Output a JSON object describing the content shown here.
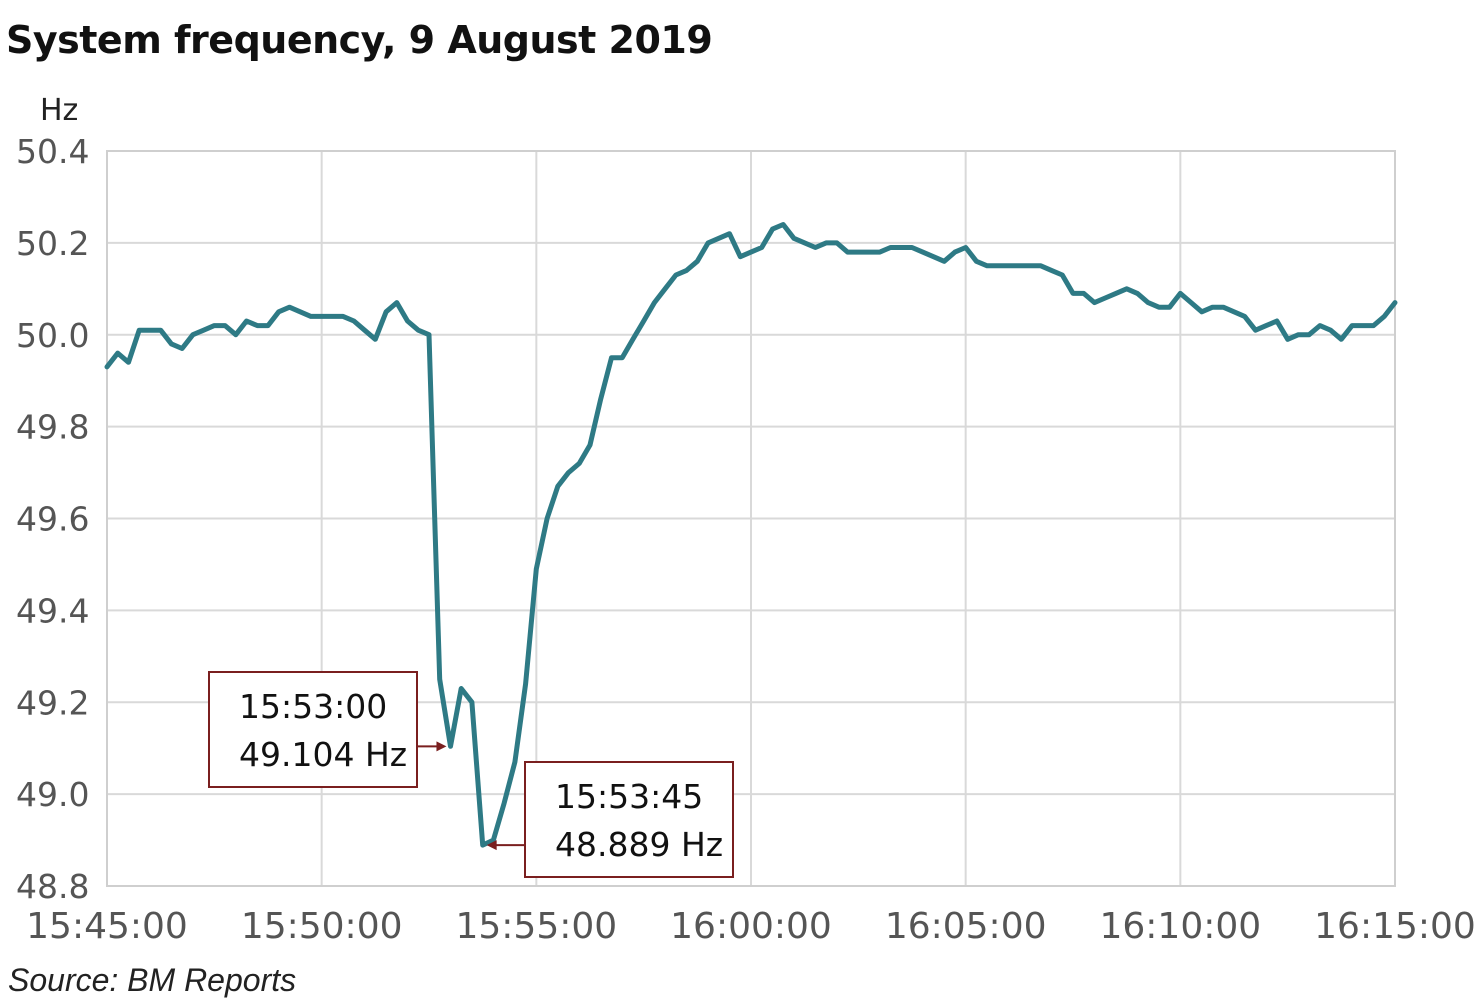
{
  "chart_data": {
    "type": "line",
    "title": "System frequency, 9 August 2019",
    "ylabel": "Hz",
    "xlabel": "",
    "ylim": [
      48.8,
      50.4
    ],
    "xlim": [
      "15:45:00",
      "16:15:00"
    ],
    "yticks": [
      "48.8",
      "49.0",
      "49.2",
      "49.4",
      "49.6",
      "49.8",
      "50.0",
      "50.2",
      "50.4"
    ],
    "xticks": [
      "15:45:00",
      "15:50:00",
      "15:55:00",
      "16:00:00",
      "16:05:00",
      "16:10:00",
      "16:15:00"
    ],
    "grid": true,
    "line_color": "#2e7a85",
    "annotation_color": "#7a1f1f",
    "series": [
      {
        "x": [
          "15:45:00",
          "15:45:15",
          "15:45:30",
          "15:45:45",
          "15:46:00",
          "15:46:15",
          "15:46:30",
          "15:46:45",
          "15:47:00",
          "15:47:15",
          "15:47:30",
          "15:47:45",
          "15:48:00",
          "15:48:15",
          "15:48:30",
          "15:48:45",
          "15:49:00",
          "15:49:15",
          "15:49:30",
          "15:49:45",
          "15:50:00",
          "15:50:15",
          "15:50:30",
          "15:50:45",
          "15:51:00",
          "15:51:15",
          "15:51:30",
          "15:51:45",
          "15:52:00",
          "15:52:15",
          "15:52:30",
          "15:52:45",
          "15:53:00",
          "15:53:15",
          "15:53:30",
          "15:53:45",
          "15:54:00",
          "15:54:15",
          "15:54:30",
          "15:54:45",
          "15:55:00",
          "15:55:15",
          "15:55:30",
          "15:55:45",
          "15:56:00",
          "15:56:15",
          "15:56:30",
          "15:56:45",
          "15:57:00",
          "15:57:15",
          "15:57:30",
          "15:57:45",
          "15:58:00",
          "15:58:15",
          "15:58:30",
          "15:58:45",
          "15:59:00",
          "15:59:15",
          "15:59:30",
          "15:59:45",
          "16:00:00",
          "16:00:15",
          "16:00:30",
          "16:00:45",
          "16:01:00",
          "16:01:15",
          "16:01:30",
          "16:01:45",
          "16:02:00",
          "16:02:15",
          "16:02:30",
          "16:02:45",
          "16:03:00",
          "16:03:15",
          "16:03:30",
          "16:03:45",
          "16:04:00",
          "16:04:15",
          "16:04:30",
          "16:04:45",
          "16:05:00",
          "16:05:15",
          "16:05:30",
          "16:05:45",
          "16:06:00",
          "16:06:15",
          "16:06:30",
          "16:06:45",
          "16:07:00",
          "16:07:15",
          "16:07:30",
          "16:07:45",
          "16:08:00",
          "16:08:15",
          "16:08:30",
          "16:08:45",
          "16:09:00",
          "16:09:15",
          "16:09:30",
          "16:09:45",
          "16:10:00",
          "16:10:15",
          "16:10:30",
          "16:10:45",
          "16:11:00",
          "16:11:15",
          "16:11:30",
          "16:11:45",
          "16:12:00",
          "16:12:15",
          "16:12:30",
          "16:12:45",
          "16:13:00",
          "16:13:15",
          "16:13:30",
          "16:13:45",
          "16:14:00",
          "16:14:15",
          "16:14:30",
          "16:14:45",
          "16:15:00"
        ],
        "values": [
          49.93,
          49.96,
          49.94,
          50.01,
          50.01,
          50.01,
          49.98,
          49.97,
          50.0,
          50.01,
          50.02,
          50.02,
          50.0,
          50.03,
          50.02,
          50.02,
          50.05,
          50.06,
          50.05,
          50.04,
          50.04,
          50.04,
          50.04,
          50.03,
          50.01,
          49.99,
          50.05,
          50.07,
          50.03,
          50.01,
          50.0,
          49.25,
          49.104,
          49.23,
          49.2,
          48.889,
          48.9,
          48.98,
          49.07,
          49.24,
          49.49,
          49.6,
          49.67,
          49.7,
          49.72,
          49.76,
          49.86,
          49.95,
          49.95,
          49.99,
          50.03,
          50.07,
          50.1,
          50.13,
          50.14,
          50.16,
          50.2,
          50.21,
          50.22,
          50.17,
          50.18,
          50.19,
          50.23,
          50.24,
          50.21,
          50.2,
          50.19,
          50.2,
          50.2,
          50.18,
          50.18,
          50.18,
          50.18,
          50.19,
          50.19,
          50.19,
          50.18,
          50.17,
          50.16,
          50.18,
          50.19,
          50.16,
          50.15,
          50.15,
          50.15,
          50.15,
          50.15,
          50.15,
          50.14,
          50.13,
          50.09,
          50.09,
          50.07,
          50.08,
          50.09,
          50.1,
          50.09,
          50.07,
          50.06,
          50.06,
          50.09,
          50.07,
          50.05,
          50.06,
          50.06,
          50.05,
          50.04,
          50.01,
          50.02,
          50.03,
          49.99,
          50.0,
          50.0,
          50.02,
          50.01,
          49.99,
          50.02,
          50.02,
          50.02,
          50.04,
          50.07
        ]
      }
    ],
    "annotations": [
      {
        "time": "15:53:00",
        "value_label": "49.104 Hz",
        "value": 49.104
      },
      {
        "time": "15:53:45",
        "value_label": "48.889 Hz",
        "value": 48.889
      }
    ],
    "source": "Source: BM Reports"
  }
}
